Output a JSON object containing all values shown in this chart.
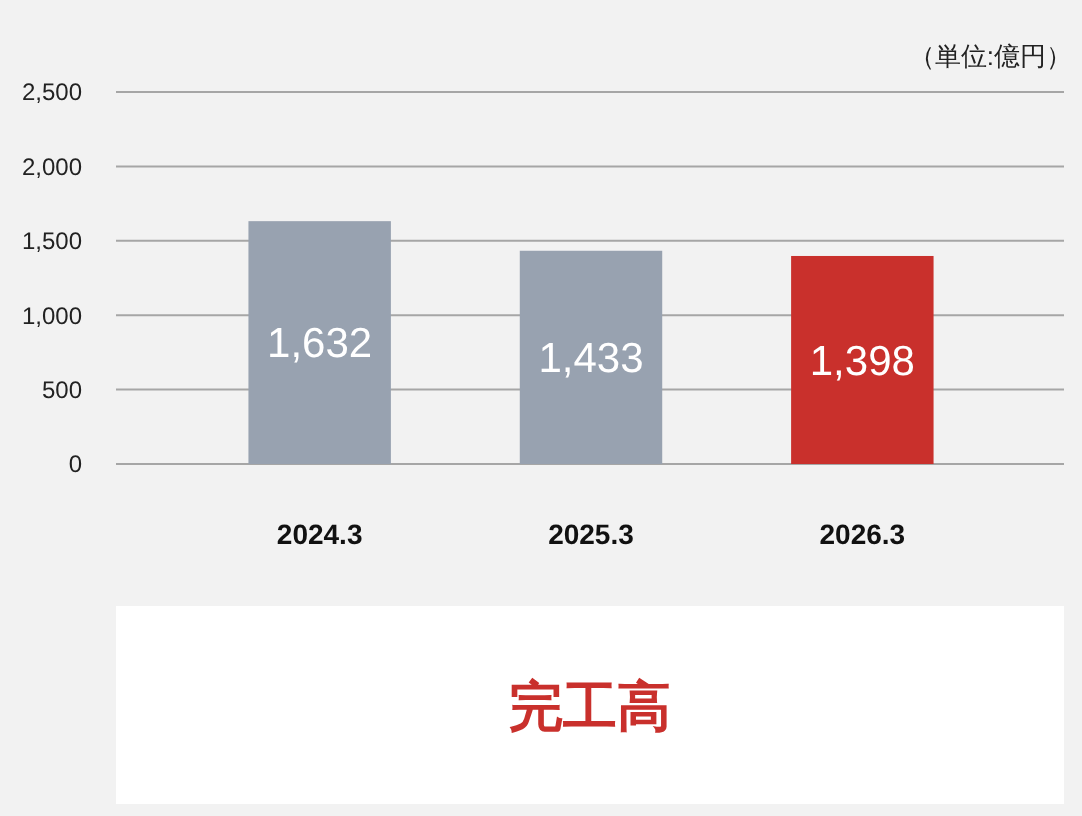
{
  "chart_data": {
    "type": "bar",
    "title": "完工高",
    "ylabel": "（単位:億円）",
    "categories": [
      "2024.3",
      "2025.3",
      "2026.3"
    ],
    "values": [
      1632,
      1433,
      1398
    ],
    "value_labels": [
      "1,632",
      "1,433",
      "1,398"
    ],
    "colors": [
      "#98a2b0",
      "#98a2b0",
      "#c9302c"
    ],
    "ylim": [
      0,
      2500
    ],
    "yticks": [
      0,
      500,
      {
        "value": 1000,
        "label": "1,000"
      },
      {
        "value": 1500,
        "label": "1,500"
      },
      {
        "value": 2000,
        "label": "2,000"
      },
      {
        "value": 2500,
        "label": "2,500"
      }
    ],
    "grid": "y"
  }
}
